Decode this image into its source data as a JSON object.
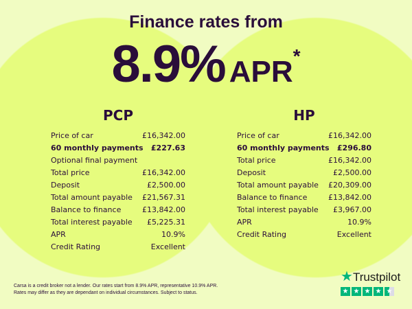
{
  "header": {
    "title": "Finance rates from",
    "rate": "8.9%",
    "apr": "APR",
    "asterisk": "*"
  },
  "pcp": {
    "heading": "PCP",
    "rows": [
      {
        "label": "Price of car",
        "value": "£16,342.00"
      },
      {
        "label": "60 monthly payments",
        "value": "£227.63",
        "bold": true
      },
      {
        "label": "Optional final payment",
        "value": ""
      },
      {
        "label": "Total price",
        "value": "£16,342.00"
      },
      {
        "label": "Deposit",
        "value": "£2,500.00"
      },
      {
        "label": "Total amount payable",
        "value": "£21,567.31"
      },
      {
        "label": "Balance to finance",
        "value": "£13,842.00"
      },
      {
        "label": "Total interest payable",
        "value": "£5,225.31"
      },
      {
        "label": "APR",
        "value": "10.9%"
      },
      {
        "label": "Credit Rating",
        "value": "Excellent"
      }
    ]
  },
  "hp": {
    "heading": "HP",
    "rows": [
      {
        "label": "Price of car",
        "value": "£16,342.00"
      },
      {
        "label": "60 monthly payments",
        "value": "£296.80",
        "bold": true
      },
      {
        "label": "Total price",
        "value": "£16,342.00"
      },
      {
        "label": "Deposit",
        "value": "£2,500.00"
      },
      {
        "label": "Total amount payable",
        "value": "£20,309.00"
      },
      {
        "label": "Balance to finance",
        "value": "£13,842.00"
      },
      {
        "label": "Total interest payable",
        "value": "£3,967.00"
      },
      {
        "label": "APR",
        "value": "10.9%"
      },
      {
        "label": "Credit Rating",
        "value": "Excellent"
      }
    ]
  },
  "disclaimer": {
    "line1": "Carsa is a credit broker not a lender. Our rates start from 8.9% APR, representative 10.9% APR.",
    "line2": "Rates may differ as they are dependant on individual circumstances. Subject to status."
  },
  "trustpilot": {
    "name": "Trustpilot",
    "rating": 4.5,
    "color": "#00b67a"
  }
}
